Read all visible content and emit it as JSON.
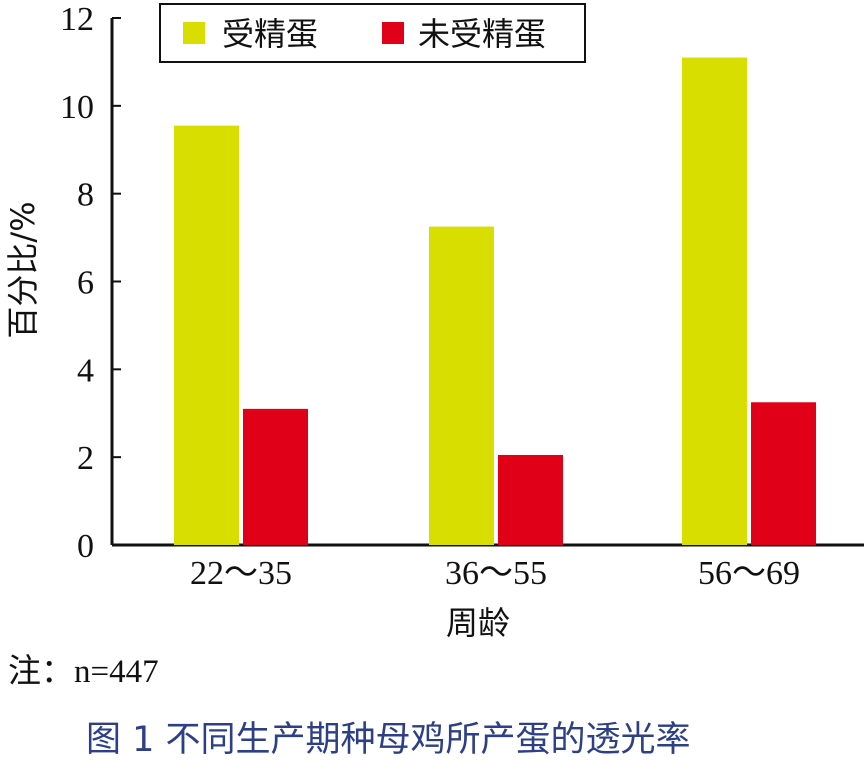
{
  "chart_data": {
    "type": "bar",
    "categories": [
      "22～35",
      "36～55",
      "56～69"
    ],
    "series": [
      {
        "name": "受精蛋",
        "values": [
          9.55,
          7.25,
          11.1
        ]
      },
      {
        "name": "未受精蛋",
        "values": [
          3.1,
          2.05,
          3.25
        ]
      }
    ],
    "xlabel": "周龄",
    "ylabel": "百分比/%",
    "ylim": [
      0,
      12
    ],
    "yticks": [
      0,
      2,
      4,
      6,
      8,
      10,
      12
    ],
    "grid": false,
    "legend": "top",
    "colors": [
      "#d8df00",
      "#e00018"
    ]
  },
  "note": "注：n=447",
  "caption": "图 1  不同生产期种母鸡所产蛋的透光率"
}
